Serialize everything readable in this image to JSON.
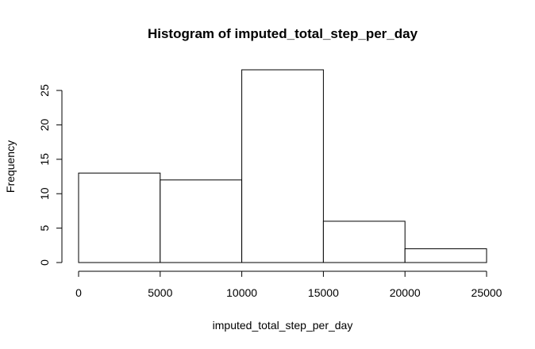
{
  "chart_data": {
    "type": "bar",
    "title": "Histogram of imputed_total_step_per_day",
    "xlabel": "imputed_total_step_per_day",
    "ylabel": "Frequency",
    "bins": [
      {
        "start": 0,
        "end": 5000,
        "count": 13
      },
      {
        "start": 5000,
        "end": 10000,
        "count": 12
      },
      {
        "start": 10000,
        "end": 15000,
        "count": 28
      },
      {
        "start": 15000,
        "end": 20000,
        "count": 6
      },
      {
        "start": 20000,
        "end": 25000,
        "count": 2
      }
    ],
    "xlim": [
      0,
      25000
    ],
    "ylim": [
      0,
      28
    ],
    "xticks": [
      0,
      5000,
      10000,
      15000,
      20000,
      25000
    ],
    "yticks": [
      0,
      5,
      10,
      15,
      20,
      25
    ],
    "grid": false,
    "legend": "none",
    "colors": {
      "bar_fill": "#ffffff",
      "bar_stroke": "#000000",
      "axis": "#000000",
      "text": "#000000"
    }
  }
}
